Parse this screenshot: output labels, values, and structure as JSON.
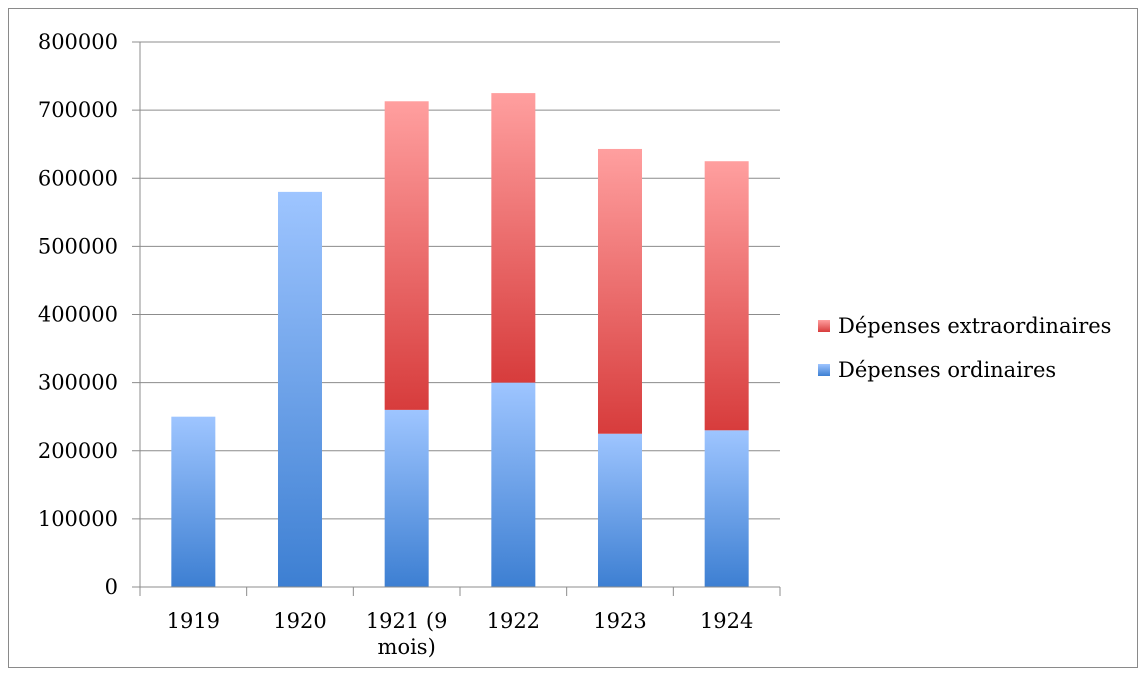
{
  "chart_data": {
    "type": "bar",
    "stacked": true,
    "categories": [
      [
        "1919"
      ],
      [
        "1920"
      ],
      [
        "1921 (9",
        "mois)"
      ],
      [
        "1922"
      ],
      [
        "1923"
      ],
      [
        "1924"
      ]
    ],
    "series": [
      {
        "name": "Dépenses ordinaires",
        "values": [
          250000,
          580000,
          260000,
          300000,
          225000,
          230000
        ],
        "color_dark": "#3d7fd2",
        "color_light": "#9ec5ff"
      },
      {
        "name": "Dépenses extraordinaires",
        "values": [
          0,
          0,
          453000,
          425000,
          418000,
          395000
        ],
        "color_dark": "#d73c3c",
        "color_light": "#ff9f9f"
      }
    ],
    "ylim": [
      0,
      800000
    ],
    "yticks": [
      0,
      100000,
      200000,
      300000,
      400000,
      500000,
      600000,
      700000,
      800000
    ],
    "grid": true,
    "legend_position": "right",
    "title": "",
    "xlabel": "",
    "ylabel": ""
  }
}
